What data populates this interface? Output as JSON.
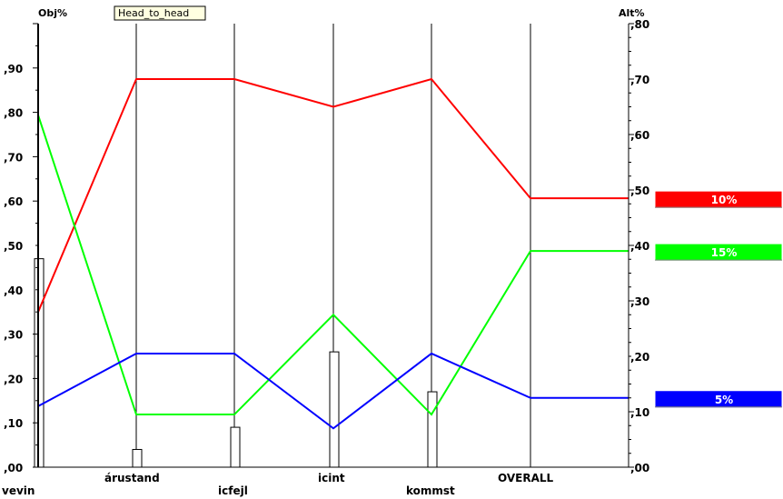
{
  "chart_data": {
    "type": "line",
    "title": "Head_to_head",
    "ylabel_left": "Obj%",
    "ylabel_right": "Alt%",
    "categories": [
      "vevin",
      "árustand",
      "icfejl",
      "icint",
      "kommst",
      "OVERALL"
    ],
    "left_axis": {
      "ylim": [
        0.0,
        1.0
      ],
      "tick_values": [
        0.0,
        0.1,
        0.2,
        0.3,
        0.4,
        0.5,
        0.6,
        0.7,
        0.8,
        0.9
      ],
      "tick_labels": [
        ",00",
        ",10",
        ",20",
        ",30",
        ",40",
        ",50",
        ",60",
        ",70",
        ",80",
        ",90"
      ]
    },
    "right_axis": {
      "ylim": [
        0.0,
        0.8
      ],
      "tick_values": [
        0.0,
        0.1,
        0.2,
        0.3,
        0.4,
        0.5,
        0.6,
        0.7,
        0.8
      ],
      "tick_labels": [
        ",00",
        ",10",
        ",20",
        ",30",
        ",40",
        ",50",
        ",60",
        ",70",
        ",80"
      ]
    },
    "bars": {
      "axis": "left",
      "values": [
        0.47,
        0.04,
        0.09,
        0.26,
        0.17,
        0.0
      ]
    },
    "series": [
      {
        "name": "10%",
        "color": "#ff0000",
        "axis": "right",
        "values": [
          0.28,
          0.7,
          0.7,
          0.65,
          0.7,
          0.485
        ]
      },
      {
        "name": "15%",
        "color": "#00ff00",
        "axis": "right",
        "values": [
          0.635,
          0.095,
          0.095,
          0.275,
          0.095,
          0.39
        ]
      },
      {
        "name": "5%",
        "color": "#0000ff",
        "axis": "right",
        "values": [
          0.11,
          0.205,
          0.205,
          0.07,
          0.205,
          0.125
        ]
      }
    ],
    "grid": "vertical lines at categories"
  }
}
